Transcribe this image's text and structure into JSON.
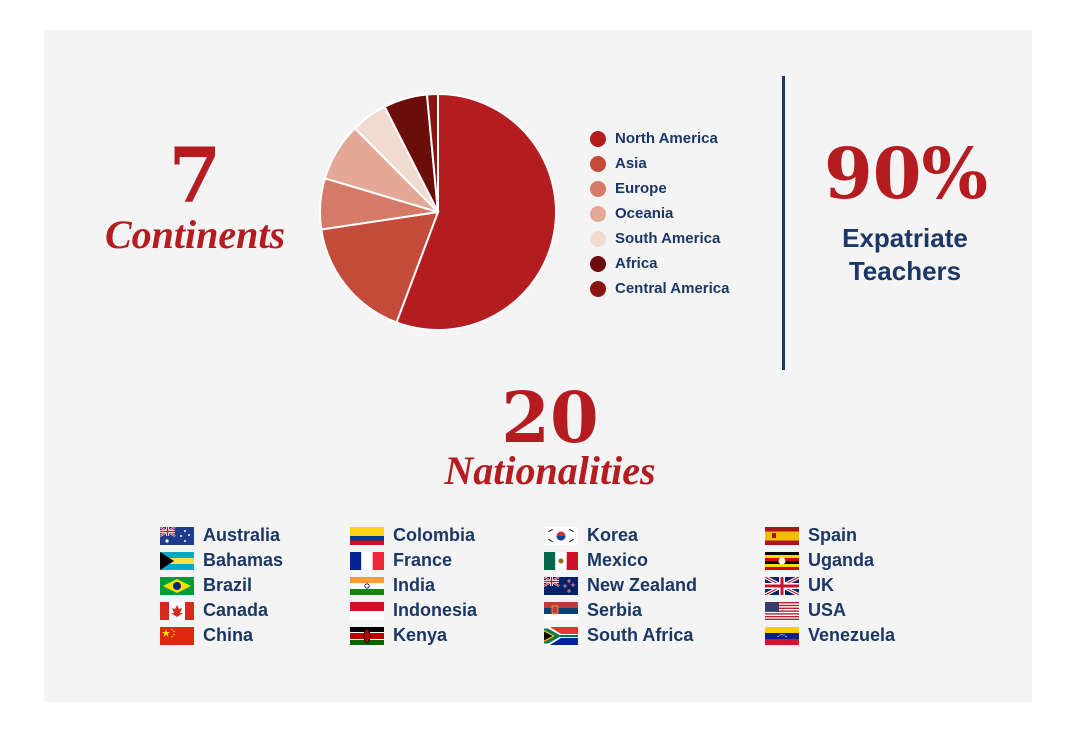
{
  "continents": {
    "number": "7",
    "word": "Continents"
  },
  "chart_data": {
    "type": "pie",
    "labels": [
      "North America",
      "Asia",
      "Europe",
      "Oceania",
      "South America",
      "Africa",
      "Central America"
    ],
    "values": [
      56,
      17,
      7,
      8,
      5,
      6,
      1.5
    ],
    "colors": [
      "#b51c20",
      "#c44a3a",
      "#d47a66",
      "#e3a896",
      "#f1dbd0",
      "#6a0d0b",
      "#8c1410"
    ],
    "legend_position": "right"
  },
  "legend": {
    "items": [
      {
        "label": "North America",
        "color": "#b51c20"
      },
      {
        "label": "Asia",
        "color": "#c44a3a"
      },
      {
        "label": "Europe",
        "color": "#d47a66"
      },
      {
        "label": "Oceania",
        "color": "#e3a896"
      },
      {
        "label": "South America",
        "color": "#f1dbd0"
      },
      {
        "label": "Africa",
        "color": "#6a0d0b"
      },
      {
        "label": "Central America",
        "color": "#8c1410"
      }
    ]
  },
  "expatriate": {
    "number": "90%",
    "line1": "Expatriate",
    "line2": "Teachers"
  },
  "nationalities": {
    "number": "20",
    "word": "Nationalities",
    "columns": [
      [
        {
          "name": "Australia",
          "flag": "australia-flag"
        },
        {
          "name": "Bahamas",
          "flag": "bahamas-flag"
        },
        {
          "name": "Brazil",
          "flag": "brazil-flag"
        },
        {
          "name": "Canada",
          "flag": "canada-flag"
        },
        {
          "name": "China",
          "flag": "china-flag"
        }
      ],
      [
        {
          "name": "Colombia",
          "flag": "colombia-flag"
        },
        {
          "name": "France",
          "flag": "france-flag"
        },
        {
          "name": "India",
          "flag": "india-flag"
        },
        {
          "name": "Indonesia",
          "flag": "indonesia-flag"
        },
        {
          "name": "Kenya",
          "flag": "kenya-flag"
        }
      ],
      [
        {
          "name": "Korea",
          "flag": "korea-flag"
        },
        {
          "name": "Mexico",
          "flag": "mexico-flag"
        },
        {
          "name": "New Zealand",
          "flag": "new-zealand-flag"
        },
        {
          "name": "Serbia",
          "flag": "serbia-flag"
        },
        {
          "name": "South Africa",
          "flag": "south-africa-flag"
        }
      ],
      [
        {
          "name": "Spain",
          "flag": "spain-flag"
        },
        {
          "name": "Uganda",
          "flag": "uganda-flag"
        },
        {
          "name": "UK",
          "flag": "uk-flag"
        },
        {
          "name": "USA",
          "flag": "usa-flag"
        },
        {
          "name": "Venezuela",
          "flag": "venezuela-flag"
        }
      ]
    ]
  },
  "colors": {
    "accent": "#b51c20",
    "navy": "#1b3766",
    "background": "#f4f4f4"
  }
}
